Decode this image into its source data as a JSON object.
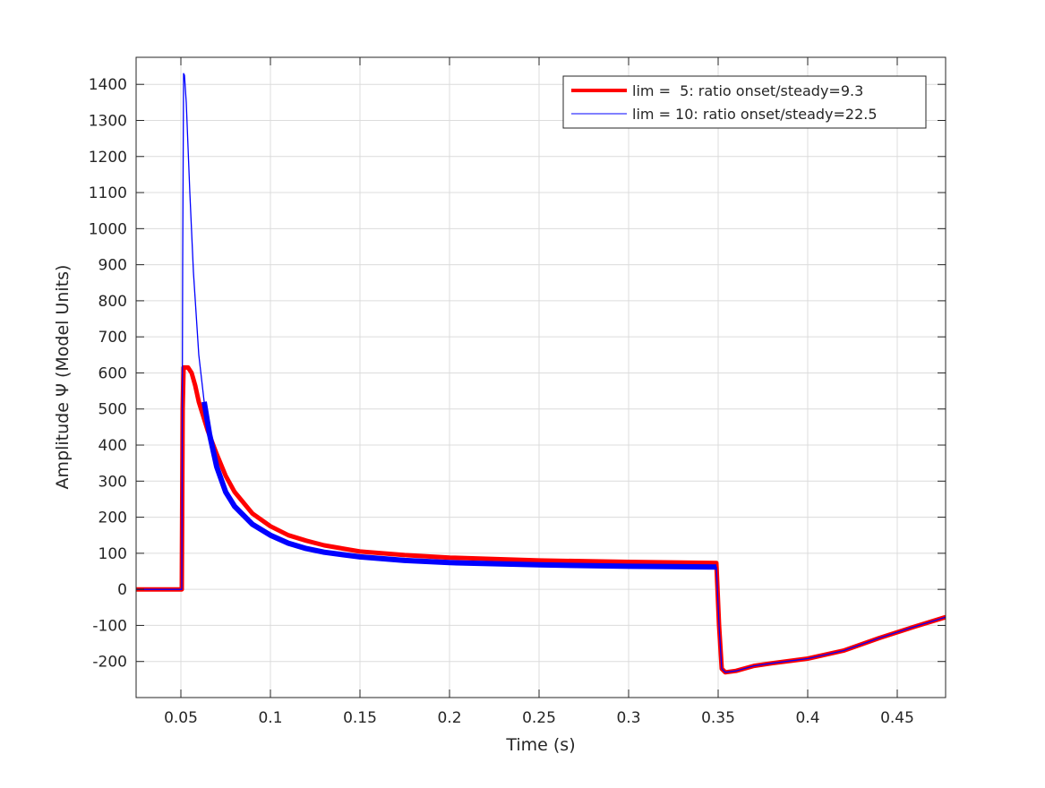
{
  "chart_data": {
    "type": "line",
    "title": "",
    "xlabel": "Time (s)",
    "ylabel": "Amplitude Ψ (Model Units)",
    "xlim": [
      0.025,
      0.477
    ],
    "ylim": [
      -300,
      1475
    ],
    "grid": true,
    "legend_position": "top-right",
    "xticks": [
      0.05,
      0.1,
      0.15,
      0.2,
      0.25,
      0.3,
      0.35,
      0.4,
      0.45
    ],
    "xtick_labels": [
      "0.05",
      "0.1",
      "0.15",
      "0.2",
      "0.25",
      "0.3",
      "0.35",
      "0.4",
      "0.45"
    ],
    "yticks": [
      -200,
      -100,
      0,
      100,
      200,
      300,
      400,
      500,
      600,
      700,
      800,
      900,
      1000,
      1100,
      1200,
      1300,
      1400
    ],
    "ytick_labels": [
      "-200",
      "-100",
      "0",
      "100",
      "200",
      "300",
      "400",
      "500",
      "600",
      "700",
      "800",
      "900",
      "1000",
      "1100",
      "1200",
      "1300",
      "1400"
    ],
    "series": [
      {
        "name": "lim =  5: ratio onset/steady=9.3",
        "color": "#ff0000",
        "x": [
          0.025,
          0.0505,
          0.051,
          0.0515,
          0.054,
          0.056,
          0.058,
          0.06,
          0.065,
          0.07,
          0.075,
          0.08,
          0.09,
          0.1,
          0.11,
          0.12,
          0.13,
          0.15,
          0.175,
          0.2,
          0.25,
          0.3,
          0.349,
          0.3505,
          0.352,
          0.354,
          0.36,
          0.37,
          0.38,
          0.4,
          0.42,
          0.44,
          0.46,
          0.477
        ],
        "y": [
          0,
          0,
          500,
          615,
          615,
          600,
          565,
          520,
          440,
          375,
          315,
          270,
          210,
          175,
          150,
          135,
          122,
          105,
          95,
          88,
          80,
          76,
          73,
          -100,
          -220,
          -230,
          -226,
          -212,
          -205,
          -192,
          -170,
          -135,
          -103,
          -77
        ]
      },
      {
        "name": "lim = 10: ratio onset/steady=22.5",
        "color": "#0000ff",
        "x": [
          0.025,
          0.0505,
          0.051,
          0.0515,
          0.052,
          0.053,
          0.055,
          0.057,
          0.06,
          0.063,
          0.066,
          0.07,
          0.075,
          0.08,
          0.09,
          0.1,
          0.11,
          0.12,
          0.13,
          0.15,
          0.175,
          0.2,
          0.25,
          0.3,
          0.349,
          0.3505,
          0.352,
          0.354,
          0.36,
          0.37,
          0.38,
          0.4,
          0.42,
          0.44,
          0.46,
          0.477
        ],
        "y": [
          0,
          0,
          900,
          1430,
          1425,
          1350,
          1100,
          880,
          650,
          520,
          430,
          340,
          270,
          230,
          180,
          150,
          128,
          113,
          103,
          90,
          80,
          74,
          68,
          64,
          62,
          -100,
          -220,
          -230,
          -226,
          -212,
          -205,
          -192,
          -170,
          -135,
          -103,
          -77
        ]
      }
    ]
  }
}
